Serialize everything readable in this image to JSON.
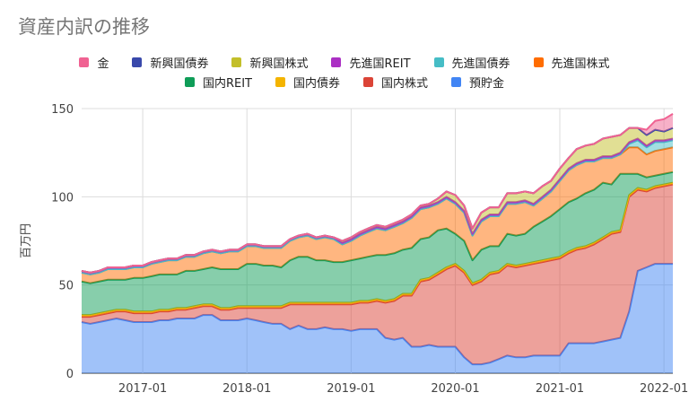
{
  "chart_data": {
    "type": "area",
    "stacked": true,
    "title": "資産内訳の推移",
    "ylabel": "百万円",
    "xlabel": "",
    "ylim": [
      0,
      150
    ],
    "yticks": [
      "0",
      "50",
      "100",
      "150"
    ],
    "xticks": [
      "2017-01",
      "2018-01",
      "2019-01",
      "2020-01",
      "2021-01",
      "2022-01"
    ],
    "grid": true,
    "legend_position": "top",
    "x": [
      "2016-06",
      "2016-07",
      "2016-08",
      "2016-09",
      "2016-10",
      "2016-11",
      "2016-12",
      "2017-01",
      "2017-02",
      "2017-03",
      "2017-04",
      "2017-05",
      "2017-06",
      "2017-07",
      "2017-08",
      "2017-09",
      "2017-10",
      "2017-11",
      "2017-12",
      "2018-01",
      "2018-02",
      "2018-03",
      "2018-04",
      "2018-05",
      "2018-06",
      "2018-07",
      "2018-08",
      "2018-09",
      "2018-10",
      "2018-11",
      "2018-12",
      "2019-01",
      "2019-02",
      "2019-03",
      "2019-04",
      "2019-05",
      "2019-06",
      "2019-07",
      "2019-08",
      "2019-09",
      "2019-10",
      "2019-11",
      "2019-12",
      "2020-01",
      "2020-02",
      "2020-03",
      "2020-04",
      "2020-05",
      "2020-06",
      "2020-07",
      "2020-08",
      "2020-09",
      "2020-10",
      "2020-11",
      "2020-12",
      "2021-01",
      "2021-02",
      "2021-03",
      "2021-04",
      "2021-05",
      "2021-06",
      "2021-07",
      "2021-08",
      "2021-09",
      "2021-10",
      "2021-11",
      "2021-12",
      "2022-01",
      "2022-02"
    ],
    "series": [
      {
        "name": "預貯金",
        "color": "#4285f4",
        "values": [
          29,
          28,
          29,
          30,
          31,
          30,
          29,
          29,
          29,
          30,
          30,
          31,
          31,
          31,
          33,
          33,
          30,
          30,
          30,
          31,
          30,
          29,
          28,
          28,
          25,
          27,
          25,
          25,
          26,
          25,
          25,
          24,
          25,
          25,
          25,
          20,
          19,
          20,
          15,
          15,
          16,
          15,
          15,
          15,
          9,
          5,
          5,
          6,
          8,
          10,
          9,
          9,
          10,
          10,
          10,
          10,
          17,
          17,
          17,
          17,
          18,
          19,
          20,
          35,
          58,
          60,
          62,
          62,
          62
        ]
      },
      {
        "name": "国内株式",
        "color": "#db4437",
        "values": [
          3,
          4,
          4,
          4,
          4,
          5,
          5,
          5,
          5,
          5,
          5,
          5,
          5,
          6,
          5,
          5,
          6,
          6,
          7,
          6,
          7,
          8,
          9,
          9,
          14,
          12,
          14,
          14,
          13,
          14,
          14,
          15,
          15,
          15,
          16,
          20,
          22,
          24,
          29,
          37,
          37,
          41,
          44,
          46,
          48,
          45,
          47,
          50,
          49,
          51,
          51,
          52,
          52,
          53,
          54,
          55,
          51,
          53,
          54,
          56,
          58,
          60,
          60,
          65,
          46,
          43,
          43,
          44,
          45
        ]
      },
      {
        "name": "国内債券",
        "color": "#f4b400",
        "values": [
          1,
          1,
          1,
          1,
          1,
          1,
          1,
          1,
          1,
          1,
          1,
          1,
          1,
          1,
          1,
          1,
          1,
          1,
          1,
          1,
          1,
          1,
          1,
          1,
          1,
          1,
          1,
          1,
          1,
          1,
          1,
          1,
          1,
          1,
          1,
          1,
          1,
          1,
          1,
          1,
          1,
          1,
          1,
          1,
          1,
          1,
          1,
          1,
          1,
          1,
          1,
          1,
          1,
          1,
          1,
          1,
          1,
          1,
          1,
          1,
          1,
          1,
          1,
          1,
          1,
          1,
          1,
          1,
          1
        ]
      },
      {
        "name": "国内REIT",
        "color": "#0f9d58",
        "values": [
          19,
          18,
          18,
          18,
          17,
          17,
          19,
          19,
          20,
          20,
          20,
          19,
          21,
          20,
          20,
          21,
          22,
          22,
          21,
          24,
          24,
          23,
          23,
          22,
          24,
          26,
          26,
          24,
          24,
          23,
          23,
          24,
          24,
          25,
          25,
          26,
          26,
          25,
          26,
          23,
          23,
          24,
          22,
          17,
          17,
          13,
          17,
          15,
          14,
          17,
          17,
          17,
          20,
          22,
          24,
          27,
          28,
          28,
          30,
          30,
          31,
          27,
          32,
          12,
          8,
          7,
          6,
          6,
          6
        ]
      },
      {
        "name": "先進国株式",
        "color": "#ff6d01",
        "values": [
          5,
          5,
          5,
          6,
          6,
          6,
          6,
          6,
          7,
          7,
          8,
          8,
          8,
          8,
          9,
          9,
          9,
          10,
          10,
          10,
          10,
          10,
          10,
          11,
          11,
          11,
          12,
          12,
          13,
          13,
          10,
          11,
          13,
          14,
          15,
          14,
          15,
          15,
          17,
          17,
          17,
          15,
          17,
          17,
          16,
          14,
          16,
          17,
          17,
          17,
          18,
          18,
          12,
          13,
          14,
          16,
          18,
          19,
          18,
          16,
          14,
          15,
          11,
          15,
          15,
          13,
          14,
          14,
          14
        ]
      },
      {
        "name": "先進国債券",
        "color": "#46bdc6",
        "values": [
          0,
          0,
          0,
          0,
          0,
          0,
          0,
          0,
          0,
          0,
          0,
          0,
          0,
          0,
          0,
          0,
          0,
          0,
          0,
          0,
          0,
          0,
          0,
          0,
          0,
          0,
          0,
          0,
          0,
          0,
          0,
          0,
          0,
          0,
          0,
          0,
          0,
          0,
          0,
          0,
          0,
          0,
          0,
          0,
          0,
          0,
          0,
          0,
          0,
          0,
          0,
          0,
          0,
          0,
          0,
          0,
          0,
          0,
          0,
          0,
          0,
          0,
          0,
          2,
          4,
          4,
          5,
          4,
          4
        ]
      },
      {
        "name": "先進国REIT",
        "color": "#ab30c4",
        "values": [
          1,
          1,
          1,
          1,
          1,
          1,
          1,
          1,
          1,
          1,
          1,
          1,
          1,
          1,
          1,
          1,
          1,
          1,
          1,
          1,
          1,
          1,
          1,
          1,
          1,
          1,
          1,
          1,
          1,
          1,
          1,
          1,
          1,
          1,
          1,
          1,
          1,
          1,
          1,
          1,
          1,
          1,
          1,
          1,
          1,
          1,
          1,
          1,
          1,
          1,
          1,
          1,
          1,
          1,
          1,
          1,
          1,
          1,
          1,
          1,
          1,
          1,
          1,
          1,
          1,
          1,
          1,
          1,
          1
        ]
      },
      {
        "name": "新興国株式",
        "color": "#c3bf2a",
        "values": [
          0,
          0,
          0,
          0,
          0,
          0,
          0,
          0,
          0,
          0,
          0,
          0,
          0,
          0,
          0,
          0,
          0,
          0,
          0,
          0,
          0,
          0,
          0,
          0,
          0,
          0,
          0,
          0,
          0,
          0,
          1,
          1,
          1,
          1,
          1,
          1,
          1,
          1,
          1,
          1,
          1,
          2,
          3,
          4,
          3,
          3,
          4,
          4,
          4,
          5,
          5,
          5,
          6,
          6,
          5,
          6,
          6,
          8,
          8,
          9,
          10,
          11,
          10,
          8,
          6,
          6,
          6,
          5,
          6
        ]
      },
      {
        "name": "新興国債券",
        "color": "#3949ab",
        "values": [
          0,
          0,
          0,
          0,
          0,
          0,
          0,
          0,
          0,
          0,
          0,
          0,
          0,
          0,
          0,
          0,
          0,
          0,
          0,
          0,
          0,
          0,
          0,
          0,
          0,
          0,
          0,
          0,
          0,
          0,
          0,
          0,
          0,
          0,
          0,
          0,
          0,
          0,
          0,
          0,
          0,
          0,
          0,
          0,
          0,
          0,
          0,
          0,
          0,
          0,
          0,
          0,
          0,
          0,
          0,
          0,
          0,
          0,
          0,
          0,
          0,
          0,
          0,
          0,
          0,
          0,
          0,
          0,
          0
        ]
      },
      {
        "name": "金",
        "color": "#f06292",
        "values": [
          0,
          0,
          0,
          0,
          0,
          0,
          0,
          0,
          0,
          0,
          0,
          0,
          0,
          0,
          0,
          0,
          0,
          0,
          0,
          0,
          0,
          0,
          0,
          0,
          0,
          0,
          0,
          0,
          0,
          0,
          0,
          0,
          0,
          0,
          0,
          0,
          0,
          0,
          0,
          0,
          0,
          0,
          0,
          0,
          0,
          0,
          0,
          0,
          0,
          0,
          0,
          0,
          0,
          0,
          0,
          0,
          0,
          0,
          0,
          0,
          0,
          0,
          0,
          0,
          0,
          3,
          5,
          7,
          8
        ]
      }
    ],
    "legend": [
      "金",
      "新興国債券",
      "新興国株式",
      "先進国REIT",
      "先進国債券",
      "先進国株式",
      "国内REIT",
      "国内債券",
      "国内株式",
      "預貯金"
    ],
    "legend_rows": [
      [
        "金",
        "新興国債券",
        "新興国株式",
        "先進国REIT",
        "先進国債券",
        "先進国株式"
      ],
      [
        "国内REIT",
        "国内債券",
        "国内株式",
        "預貯金"
      ]
    ]
  }
}
